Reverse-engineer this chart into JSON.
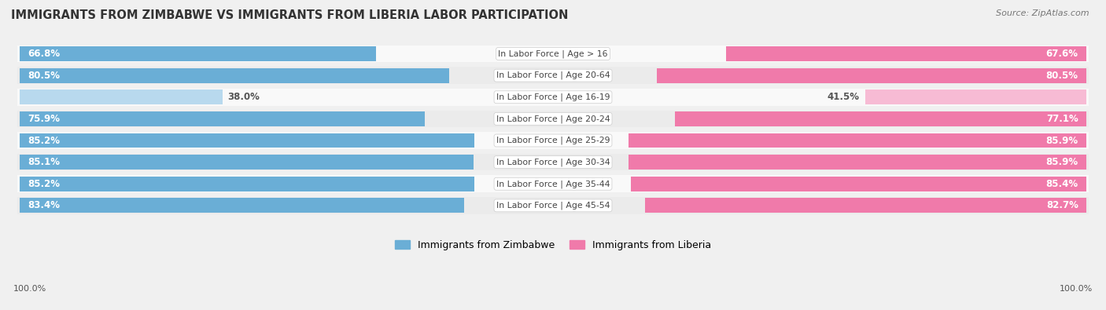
{
  "title": "IMMIGRANTS FROM ZIMBABWE VS IMMIGRANTS FROM LIBERIA LABOR PARTICIPATION",
  "source": "Source: ZipAtlas.com",
  "categories": [
    "In Labor Force | Age > 16",
    "In Labor Force | Age 20-64",
    "In Labor Force | Age 16-19",
    "In Labor Force | Age 20-24",
    "In Labor Force | Age 25-29",
    "In Labor Force | Age 30-34",
    "In Labor Force | Age 35-44",
    "In Labor Force | Age 45-54"
  ],
  "zimbabwe_values": [
    66.8,
    80.5,
    38.0,
    75.9,
    85.2,
    85.1,
    85.2,
    83.4
  ],
  "liberia_values": [
    67.6,
    80.5,
    41.5,
    77.1,
    85.9,
    85.9,
    85.4,
    82.7
  ],
  "zimbabwe_color_dark": "#6aaed6",
  "zimbabwe_color_light": "#b8d9ee",
  "liberia_color_dark": "#f07aaa",
  "liberia_color_light": "#f7bbd4",
  "legend_zimbabwe": "Immigrants from Zimbabwe",
  "legend_liberia": "Immigrants from Liberia",
  "bar_height": 0.68,
  "background_color": "#f0f0f0",
  "row_colors": [
    "#f9f9f9",
    "#ebebeb"
  ],
  "footer_label": "100.0%",
  "max_val": 100,
  "threshold": 50
}
